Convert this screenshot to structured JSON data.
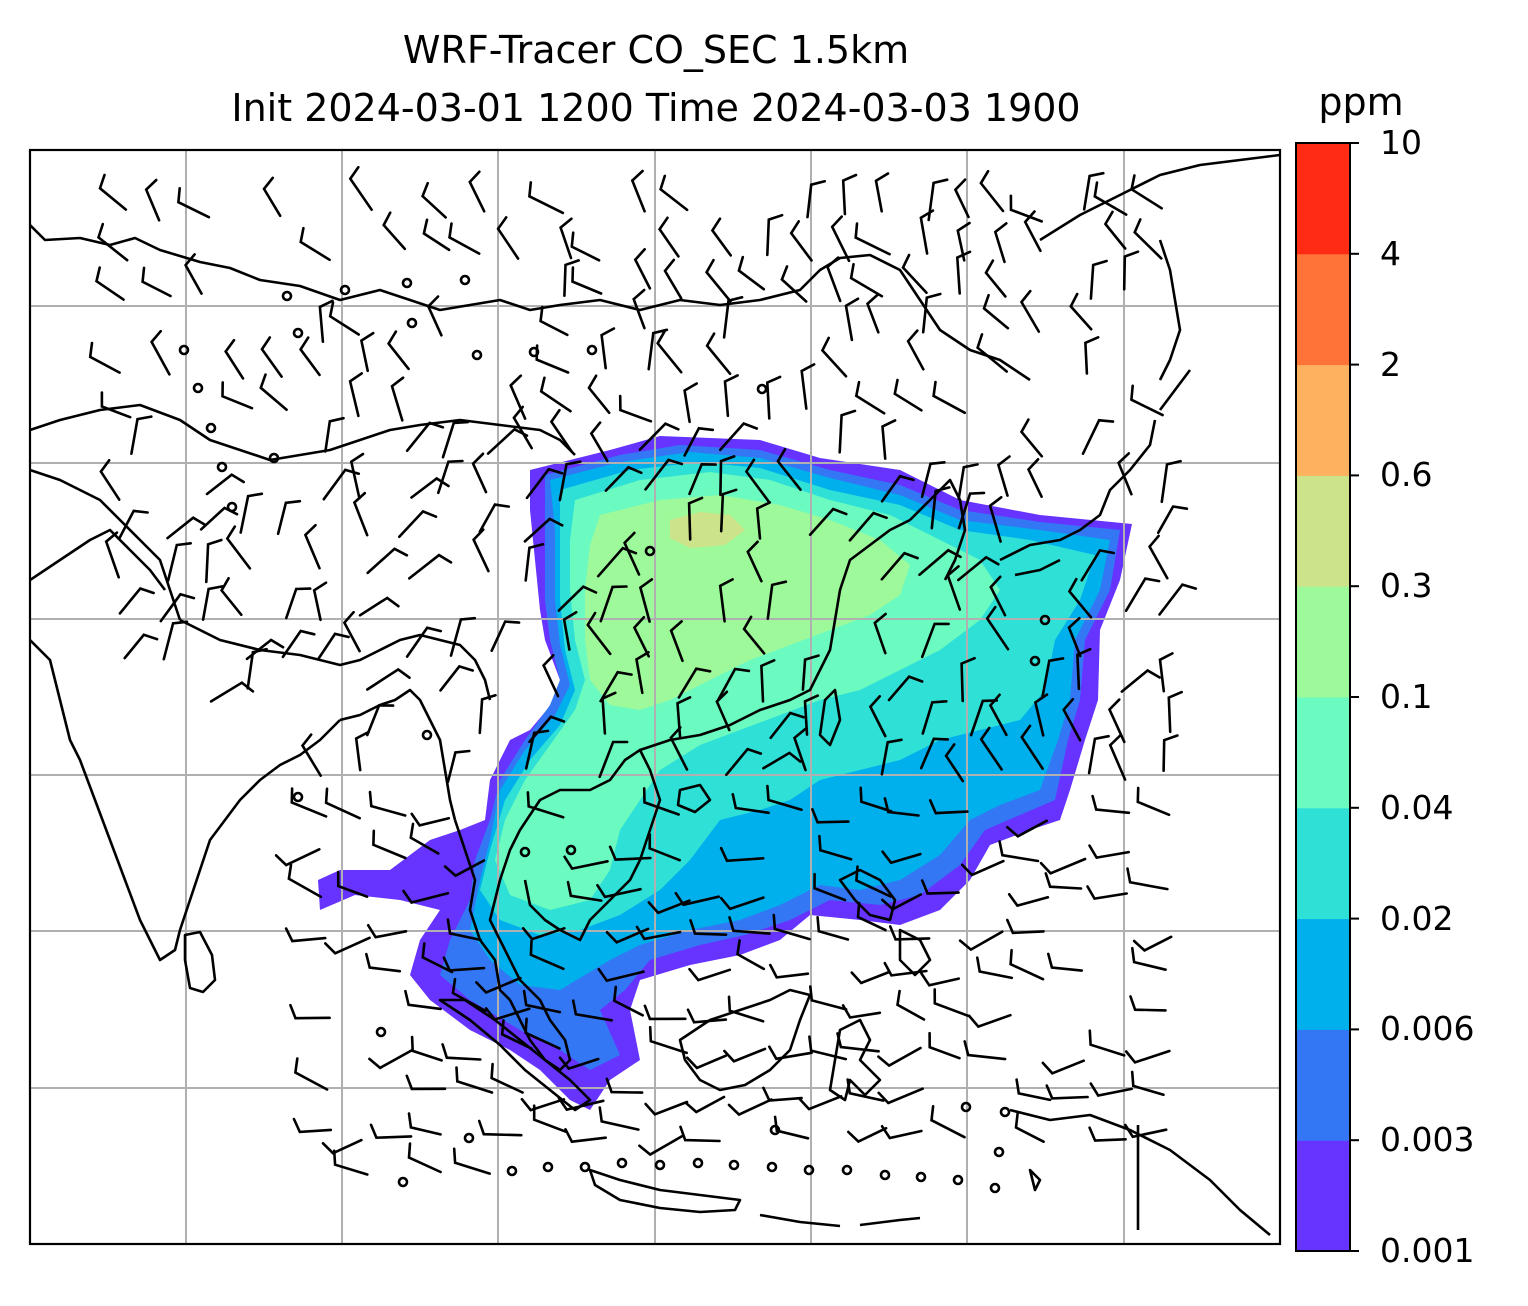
{
  "title": {
    "line1": "WRF-Tracer CO_SEC 1.5km",
    "line2": "Init 2024-03-01 1200 Time 2024-03-03 1900"
  },
  "colorbar": {
    "unit": "ppm",
    "levels": [
      "0.001",
      "0.003",
      "0.006",
      "0.02",
      "0.04",
      "0.1",
      "0.3",
      "0.6",
      "2",
      "4",
      "10"
    ],
    "colors": [
      "#6633ff",
      "#3377f5",
      "#00b0ec",
      "#2ee0d6",
      "#6bfbc0",
      "#9ef99a",
      "#cde38a",
      "#feb15e",
      "#ff7238",
      "#ff2b15"
    ]
  },
  "map": {
    "gridlines": "on",
    "wind_barbs": "shown",
    "coastline_color": "#000000",
    "grid_color": "#b0b0b0"
  }
}
